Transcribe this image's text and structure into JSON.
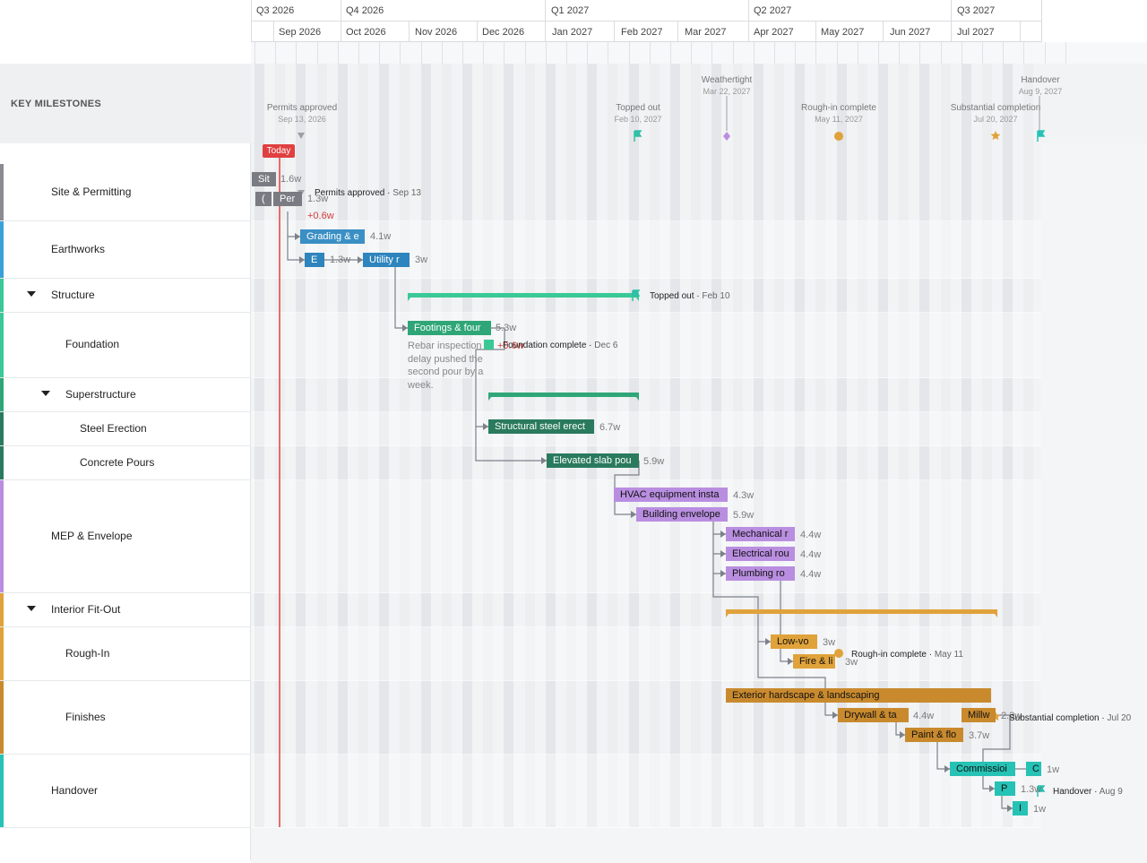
{
  "today_label": "Today",
  "quarters": [
    "Q3 2026",
    "Q4 2026",
    "Q1 2027",
    "Q2 2027",
    "Q3 2027"
  ],
  "months": [
    "Sep 2026",
    "Oct 2026",
    "Nov 2026",
    "Dec 2026",
    "Jan 2027",
    "Feb 2027",
    "Mar 2027",
    "Apr 2027",
    "May 2027",
    "Jun 2027",
    "Jul 2027"
  ],
  "key_milestones_label": "KEY MILESTONES",
  "milestones": [
    {
      "name": "Permits approved",
      "date": "Sep 13, 2026"
    },
    {
      "name": "Topped out",
      "date": "Feb 10, 2027"
    },
    {
      "name": "Weathertight",
      "date": "Mar 22, 2027"
    },
    {
      "name": "Rough-in complete",
      "date": "May 11, 2027"
    },
    {
      "name": "Substantial completion",
      "date": "Jul 20, 2027"
    },
    {
      "name": "Handover",
      "date": "Aug 9, 2027"
    }
  ],
  "rows": [
    {
      "label": "Site & Permitting"
    },
    {
      "label": "Earthworks"
    },
    {
      "label": "Structure"
    },
    {
      "label": "Foundation"
    },
    {
      "label": "Superstructure"
    },
    {
      "label": "Steel Erection"
    },
    {
      "label": "Concrete Pours"
    },
    {
      "label": "MEP & Envelope"
    },
    {
      "label": "Interior Fit-Out"
    },
    {
      "label": "Rough-In"
    },
    {
      "label": "Finishes"
    },
    {
      "label": "Handover"
    }
  ],
  "tasks": [
    {
      "label": "Sit",
      "duration": "1.6w"
    },
    {
      "label": "(",
      "duration": ""
    },
    {
      "label": "Per",
      "duration": "1.3w"
    },
    {
      "label": "Grading & e",
      "duration": "4.1w"
    },
    {
      "label": "E",
      "duration": "1.3w"
    },
    {
      "label": "Utility r",
      "duration": "3w"
    },
    {
      "label": "Footings & four",
      "duration": "5.3w"
    },
    {
      "label": "Structural steel erect",
      "duration": "6.7w"
    },
    {
      "label": "Elevated slab pou",
      "duration": "5.9w"
    },
    {
      "label": "HVAC equipment insta",
      "duration": "4.3w"
    },
    {
      "label": "Building envelope",
      "duration": "5.9w"
    },
    {
      "label": "Mechanical r",
      "duration": "4.4w"
    },
    {
      "label": "Electrical rou",
      "duration": "4.4w"
    },
    {
      "label": "Plumbing ro",
      "duration": "4.4w"
    },
    {
      "label": "Low-vo",
      "duration": "3w"
    },
    {
      "label": "Fire & li",
      "duration": "3w"
    },
    {
      "label": "Exterior hardscape & landscaping",
      "duration": ""
    },
    {
      "label": "Drywall & ta",
      "duration": "4.4w"
    },
    {
      "label": "Millw",
      "duration": "2.3w"
    },
    {
      "label": "Paint & flo",
      "duration": "3.7w"
    },
    {
      "label": "Commissioi",
      "duration": ""
    },
    {
      "label": "C",
      "duration": "1w"
    },
    {
      "label": "P",
      "duration": "1.3w"
    },
    {
      "label": "I",
      "duration": "1w"
    }
  ],
  "delay_label": "+0.6w",
  "foundation_delay_label": "+0.6w",
  "inline_milestones": [
    {
      "name": "Permits approved",
      "date": "Sep 13"
    },
    {
      "name": "Topped out",
      "date": "Feb 10"
    },
    {
      "name": "Foundation complete",
      "date": "Dec 6"
    },
    {
      "name": "Rough-in complete",
      "date": "May 11"
    },
    {
      "name": "Substantial completion",
      "date": "Jul 20"
    },
    {
      "name": "Handover",
      "date": "Aug 9"
    }
  ],
  "note": "Rebar inspection delay pushed the second pour by a week.",
  "colors": {
    "site": "#8a8a92",
    "earthworks": "#3aa0d8",
    "structure": "#3ac996",
    "steel": "#2a7a5e",
    "mep": "#b98ee0",
    "fitout": "#e0a23a",
    "finishes": "#c98a2e",
    "handover": "#26c2b5",
    "today": "#e04040",
    "delay": "#d43a3a"
  }
}
